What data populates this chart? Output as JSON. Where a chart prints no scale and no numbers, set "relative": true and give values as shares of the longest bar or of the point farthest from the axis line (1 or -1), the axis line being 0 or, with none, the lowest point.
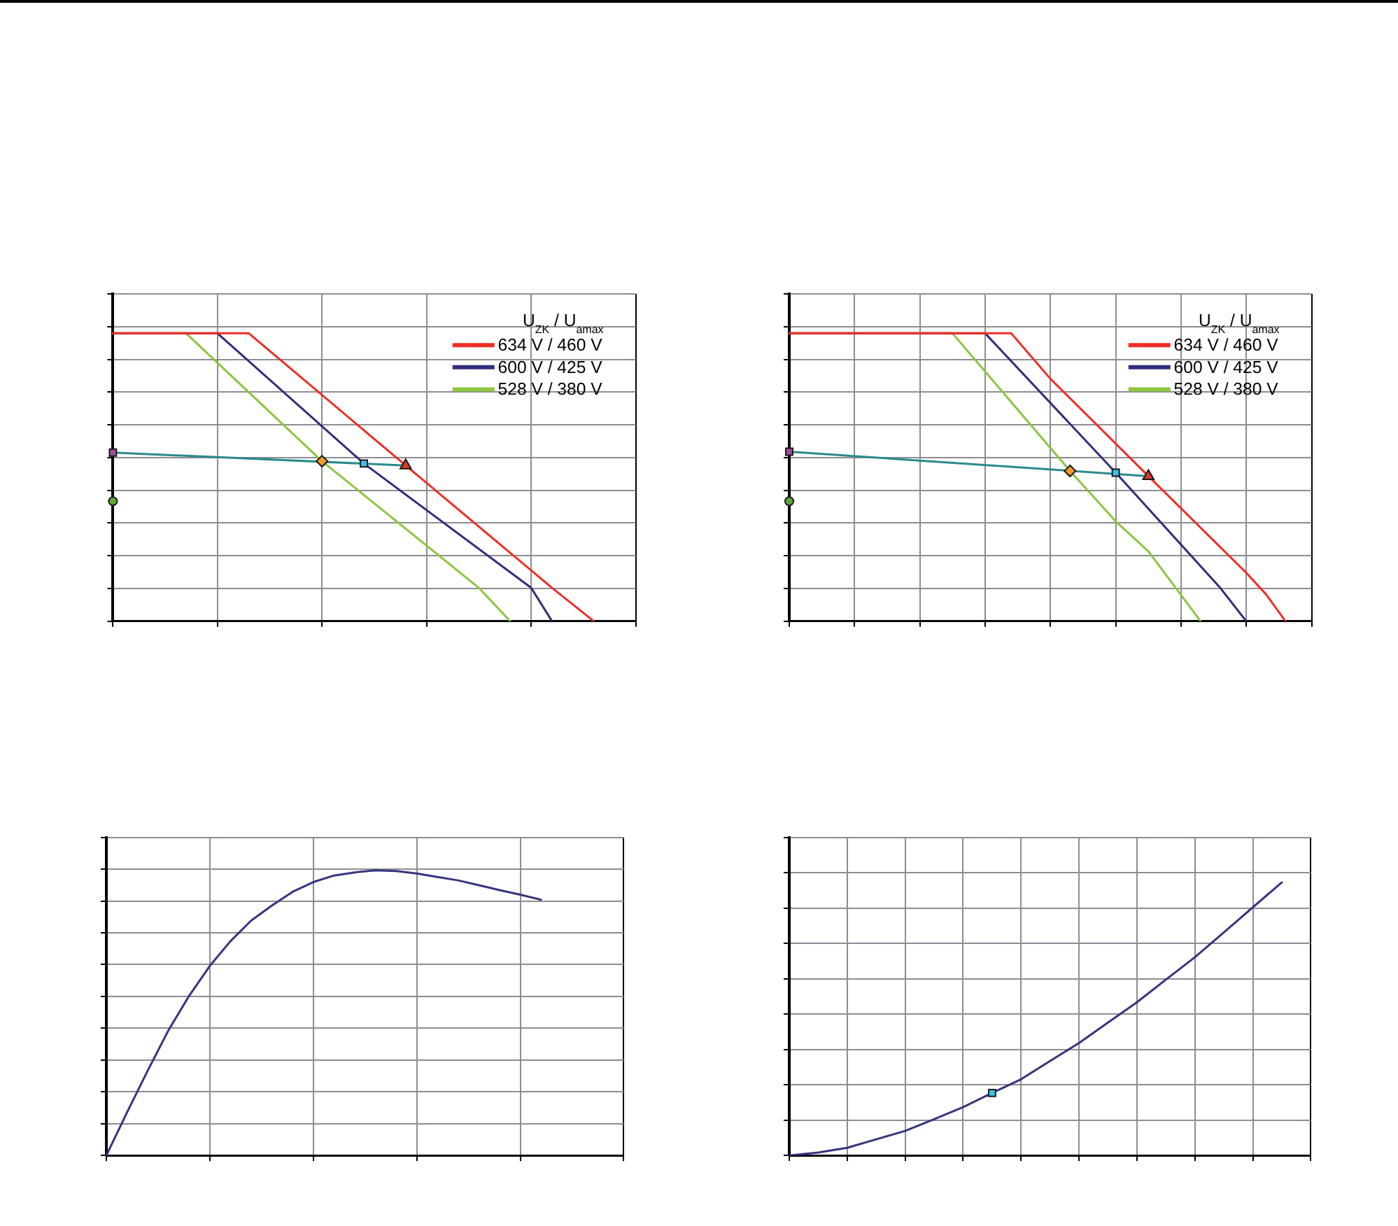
{
  "chart_data": [
    {
      "type": "line",
      "relative": true,
      "grid": true,
      "legend": "top right",
      "legend_title": "U$_{ZK}$ / U$_{amax}$",
      "categories": [
        null,
        null,
        null,
        null,
        null,
        null,
        null,
        null,
        null,
        null,
        null,
        null,
        null,
        null,
        null,
        null,
        null,
        null,
        null,
        null,
        null,
        null,
        null,
        null,
        null,
        null,
        null,
        null,
        null,
        null,
        null,
        null,
        null,
        null,
        null,
        null,
        null,
        null,
        null,
        null,
        null,
        null,
        null,
        null,
        null,
        null,
        null,
        null,
        null,
        null,
        null
      ],
      "series": [
        {
          "name": "634 V / 460 V",
          "color": "#ee2e24",
          "values": [
            1,
            null,
            null,
            null,
            null,
            null,
            null,
            null,
            null,
            null,
            null,
            null,
            null,
            1,
            null,
            null,
            null,
            null,
            null,
            null,
            null,
            null,
            null,
            null,
            null,
            null,
            null,
            null,
            0.541,
            null,
            null,
            null,
            null,
            null,
            null,
            null,
            null,
            null,
            null,
            null,
            null,
            null,
            0.116,
            null,
            null,
            null,
            0,
            null,
            null,
            null,
            null
          ]
        },
        {
          "name": "600 V / 425 V",
          "color": "#302e7c",
          "values": [
            1,
            null,
            null,
            null,
            null,
            null,
            null,
            null,
            null,
            null,
            1,
            null,
            null,
            null,
            null,
            null,
            null,
            null,
            null,
            null,
            null,
            null,
            null,
            null,
            0.548,
            null,
            null,
            null,
            null,
            null,
            null,
            null,
            null,
            null,
            null,
            null,
            null,
            null,
            null,
            null,
            0.116,
            null,
            0,
            null,
            null,
            null,
            null,
            null,
            null,
            null,
            null
          ]
        },
        {
          "name": "528 V / 380 V",
          "color": "#8dc63f",
          "values": [
            1,
            null,
            null,
            null,
            null,
            null,
            null,
            1,
            null,
            null,
            null,
            null,
            null,
            null,
            null,
            null,
            null,
            null,
            null,
            null,
            0.556,
            null,
            null,
            null,
            null,
            null,
            null,
            null,
            null,
            null,
            null,
            null,
            null,
            null,
            null,
            0.116,
            null,
            null,
            0,
            null,
            null,
            null,
            null,
            null,
            null,
            null,
            null,
            null,
            null,
            null,
            null
          ]
        },
        {
          "color": "#2b8a8c",
          "values": [
            0.586,
            null,
            null,
            null,
            null,
            null,
            null,
            null,
            null,
            null,
            null,
            null,
            null,
            null,
            null,
            null,
            null,
            null,
            null,
            null,
            null,
            null,
            null,
            null,
            null,
            null,
            null,
            null,
            0.541,
            null,
            null,
            null,
            null,
            null,
            null,
            null,
            null,
            null,
            null,
            null,
            null,
            null,
            null,
            null,
            null,
            null,
            null,
            null,
            null,
            null,
            null
          ]
        },
        {
          "type": "line",
          "marker": "square",
          "color": "#9e4f9a",
          "values": [
            0.586,
            null,
            null,
            null,
            null,
            null,
            null,
            null,
            null,
            null,
            null,
            null,
            null,
            null,
            null,
            null,
            null,
            null,
            null,
            null,
            null,
            null,
            null,
            null,
            null,
            null,
            null,
            null,
            null,
            null,
            null,
            null,
            null,
            null,
            null,
            null,
            null,
            null,
            null,
            null,
            null,
            null,
            null,
            null,
            null,
            null,
            null,
            null,
            null,
            null,
            null
          ]
        },
        {
          "type": "line",
          "marker": "circle",
          "color": "#5aa83a",
          "values": [
            0.417,
            null,
            null,
            null,
            null,
            null,
            null,
            null,
            null,
            null,
            null,
            null,
            null,
            null,
            null,
            null,
            null,
            null,
            null,
            null,
            null,
            null,
            null,
            null,
            null,
            null,
            null,
            null,
            null,
            null,
            null,
            null,
            null,
            null,
            null,
            null,
            null,
            null,
            null,
            null,
            null,
            null,
            null,
            null,
            null,
            null,
            null,
            null,
            null,
            null,
            null
          ]
        },
        {
          "type": "line",
          "marker": "diamond",
          "color": "#f29a2e",
          "values": [
            null,
            null,
            null,
            null,
            null,
            null,
            null,
            null,
            null,
            null,
            null,
            null,
            null,
            null,
            null,
            null,
            null,
            null,
            null,
            null,
            0.556,
            null,
            null,
            null,
            null,
            null,
            null,
            null,
            null,
            null,
            null,
            null,
            null,
            null,
            null,
            null,
            null,
            null,
            null,
            null,
            null,
            null,
            null,
            null,
            null,
            null,
            null,
            null,
            null,
            null,
            null
          ]
        },
        {
          "type": "line",
          "marker": "square",
          "color": "#36c3ea",
          "values": [
            null,
            null,
            null,
            null,
            null,
            null,
            null,
            null,
            null,
            null,
            null,
            null,
            null,
            null,
            null,
            null,
            null,
            null,
            null,
            null,
            null,
            null,
            null,
            null,
            0.548,
            null,
            null,
            null,
            null,
            null,
            null,
            null,
            null,
            null,
            null,
            null,
            null,
            null,
            null,
            null,
            null,
            null,
            null,
            null,
            null,
            null,
            null,
            null,
            null,
            null,
            null
          ]
        },
        {
          "type": "line",
          "marker": "triangle",
          "color": "#d9382c",
          "values": [
            null,
            null,
            null,
            null,
            null,
            null,
            null,
            null,
            null,
            null,
            null,
            null,
            null,
            null,
            null,
            null,
            null,
            null,
            null,
            null,
            null,
            null,
            null,
            null,
            null,
            null,
            null,
            null,
            0.541,
            null,
            null,
            null,
            null,
            null,
            null,
            null,
            null,
            null,
            null,
            null,
            null,
            null,
            null,
            null,
            null,
            null,
            null,
            null,
            null,
            null,
            null
          ]
        }
      ]
    },
    {
      "type": "line",
      "relative": true,
      "grid": true,
      "legend": "top right",
      "legend_title": "U$_{ZK}$ / U$_{amax}$",
      "categories": [
        null,
        null,
        null,
        null,
        null,
        null,
        null,
        null,
        null,
        null,
        null,
        null,
        null,
        null,
        null,
        null,
        null,
        null,
        null,
        null,
        null,
        null,
        null,
        null,
        null,
        null,
        null,
        null,
        null,
        null,
        null,
        null,
        null,
        null,
        null,
        null,
        null,
        null,
        null,
        null,
        null,
        null,
        null,
        null,
        null,
        null,
        null,
        null,
        null,
        null,
        null,
        null,
        null,
        null,
        null,
        null,
        null,
        null,
        null,
        null,
        null,
        null,
        null,
        null,
        null,
        null,
        null,
        null,
        null,
        null,
        null,
        null,
        null,
        null,
        null,
        null,
        null,
        null,
        null,
        null,
        null
      ],
      "series": [
        {
          "name": "634 V / 460 V",
          "color": "#ee2e24",
          "values": [
            1,
            null,
            null,
            null,
            null,
            null,
            null,
            null,
            null,
            null,
            null,
            null,
            null,
            null,
            null,
            null,
            null,
            null,
            null,
            null,
            null,
            null,
            null,
            null,
            null,
            null,
            null,
            null,
            null,
            null,
            null,
            null,
            null,
            null,
            1,
            null,
            null,
            null,
            null,
            null,
            0.842,
            null,
            null,
            null,
            null,
            null,
            null,
            null,
            null,
            null,
            null,
            null,
            null,
            null,
            null,
            0.504,
            null,
            null,
            null,
            null,
            null,
            null,
            null,
            null,
            null,
            null,
            null,
            null,
            null,
            null,
            0.168,
            null,
            null,
            0.094,
            null,
            null,
            0,
            null,
            null,
            null,
            null
          ]
        },
        {
          "name": "600 V / 425 V",
          "color": "#302e7c",
          "values": [
            1,
            null,
            null,
            null,
            null,
            null,
            null,
            null,
            null,
            null,
            null,
            null,
            null,
            null,
            null,
            null,
            null,
            null,
            null,
            null,
            null,
            null,
            null,
            null,
            null,
            null,
            null,
            null,
            null,
            null,
            1,
            null,
            null,
            null,
            null,
            null,
            null,
            null,
            null,
            null,
            null,
            null,
            null,
            null,
            null,
            null,
            null,
            null,
            null,
            null,
            0.516,
            null,
            null,
            null,
            null,
            null,
            null,
            null,
            null,
            null,
            null,
            null,
            null,
            null,
            null,
            null,
            0.116,
            null,
            null,
            null,
            0,
            null,
            null,
            null,
            null,
            null,
            null,
            null,
            null,
            null,
            null
          ]
        },
        {
          "name": "528 V / 380 V",
          "color": "#8dc63f",
          "values": [
            1,
            null,
            null,
            null,
            null,
            null,
            null,
            null,
            null,
            null,
            null,
            null,
            null,
            null,
            null,
            null,
            null,
            null,
            null,
            null,
            null,
            null,
            null,
            null,
            null,
            1,
            null,
            null,
            null,
            null,
            null,
            null,
            null,
            null,
            null,
            null,
            null,
            null,
            null,
            null,
            null,
            null,
            null,
            0.522,
            null,
            null,
            null,
            null,
            null,
            null,
            0.347,
            null,
            null,
            null,
            null,
            0.243,
            null,
            null,
            null,
            null,
            null,
            null,
            null,
            0,
            null,
            null,
            null,
            null,
            null,
            null,
            null,
            null,
            null,
            null,
            null,
            null,
            null,
            null,
            null,
            null,
            null
          ]
        },
        {
          "color": "#2b8a8c",
          "values": [
            0.589,
            null,
            null,
            null,
            null,
            null,
            null,
            null,
            null,
            null,
            null,
            null,
            null,
            null,
            null,
            null,
            null,
            null,
            null,
            null,
            null,
            null,
            null,
            null,
            null,
            null,
            null,
            null,
            null,
            null,
            null,
            null,
            null,
            null,
            null,
            null,
            null,
            null,
            null,
            null,
            null,
            null,
            null,
            null,
            null,
            null,
            null,
            null,
            null,
            null,
            null,
            null,
            null,
            null,
            null,
            0.504,
            null,
            null,
            null,
            null,
            null,
            null,
            null,
            null,
            null,
            null,
            null,
            null,
            null,
            null,
            null,
            null,
            null,
            null,
            null,
            null,
            null,
            null,
            null,
            null,
            null
          ]
        },
        {
          "type": "line",
          "marker": "square",
          "color": "#9e4f9a",
          "values": [
            0.589,
            null,
            null,
            null,
            null,
            null,
            null,
            null,
            null,
            null,
            null,
            null,
            null,
            null,
            null,
            null,
            null,
            null,
            null,
            null,
            null,
            null,
            null,
            null,
            null,
            null,
            null,
            null,
            null,
            null,
            null,
            null,
            null,
            null,
            null,
            null,
            null,
            null,
            null,
            null,
            null,
            null,
            null,
            null,
            null,
            null,
            null,
            null,
            null,
            null,
            null,
            null,
            null,
            null,
            null,
            null,
            null,
            null,
            null,
            null,
            null,
            null,
            null,
            null,
            null,
            null,
            null,
            null,
            null,
            null,
            null,
            null,
            null,
            null,
            null,
            null,
            null,
            null,
            null,
            null,
            null
          ]
        },
        {
          "type": "line",
          "marker": "circle",
          "color": "#5aa83a",
          "values": [
            0.417,
            null,
            null,
            null,
            null,
            null,
            null,
            null,
            null,
            null,
            null,
            null,
            null,
            null,
            null,
            null,
            null,
            null,
            null,
            null,
            null,
            null,
            null,
            null,
            null,
            null,
            null,
            null,
            null,
            null,
            null,
            null,
            null,
            null,
            null,
            null,
            null,
            null,
            null,
            null,
            null,
            null,
            null,
            null,
            null,
            null,
            null,
            null,
            null,
            null,
            null,
            null,
            null,
            null,
            null,
            null,
            null,
            null,
            null,
            null,
            null,
            null,
            null,
            null,
            null,
            null,
            null,
            null,
            null,
            null,
            null,
            null,
            null,
            null,
            null,
            null,
            null,
            null,
            null,
            null,
            null
          ]
        },
        {
          "type": "line",
          "marker": "diamond",
          "color": "#f29a2e",
          "values": [
            null,
            null,
            null,
            null,
            null,
            null,
            null,
            null,
            null,
            null,
            null,
            null,
            null,
            null,
            null,
            null,
            null,
            null,
            null,
            null,
            null,
            null,
            null,
            null,
            null,
            null,
            null,
            null,
            null,
            null,
            null,
            null,
            null,
            null,
            null,
            null,
            null,
            null,
            null,
            null,
            null,
            null,
            null,
            0.522,
            null,
            null,
            null,
            null,
            null,
            null,
            null,
            null,
            null,
            null,
            null,
            null,
            null,
            null,
            null,
            null,
            null,
            null,
            null,
            null,
            null,
            null,
            null,
            null,
            null,
            null,
            null,
            null,
            null,
            null,
            null,
            null,
            null,
            null,
            null,
            null,
            null
          ]
        },
        {
          "type": "line",
          "marker": "square",
          "color": "#36c3ea",
          "values": [
            null,
            null,
            null,
            null,
            null,
            null,
            null,
            null,
            null,
            null,
            null,
            null,
            null,
            null,
            null,
            null,
            null,
            null,
            null,
            null,
            null,
            null,
            null,
            null,
            null,
            null,
            null,
            null,
            null,
            null,
            null,
            null,
            null,
            null,
            null,
            null,
            null,
            null,
            null,
            null,
            null,
            null,
            null,
            null,
            null,
            null,
            null,
            null,
            null,
            null,
            0.516,
            null,
            null,
            null,
            null,
            null,
            null,
            null,
            null,
            null,
            null,
            null,
            null,
            null,
            null,
            null,
            null,
            null,
            null,
            null,
            null,
            null,
            null,
            null,
            null,
            null,
            null,
            null,
            null,
            null,
            null
          ]
        },
        {
          "type": "line",
          "marker": "triangle",
          "color": "#d9382c",
          "values": [
            null,
            null,
            null,
            null,
            null,
            null,
            null,
            null,
            null,
            null,
            null,
            null,
            null,
            null,
            null,
            null,
            null,
            null,
            null,
            null,
            null,
            null,
            null,
            null,
            null,
            null,
            null,
            null,
            null,
            null,
            null,
            null,
            null,
            null,
            null,
            null,
            null,
            null,
            null,
            null,
            null,
            null,
            null,
            null,
            null,
            null,
            null,
            null,
            null,
            null,
            null,
            null,
            null,
            null,
            null,
            0.504,
            null,
            null,
            null,
            null,
            null,
            null,
            null,
            null,
            null,
            null,
            null,
            null,
            null,
            null,
            null,
            null,
            null,
            null,
            null,
            null,
            null,
            null,
            null,
            null,
            null
          ]
        }
      ]
    },
    {
      "type": "line",
      "relative": true,
      "grid": true,
      "categories": [
        null,
        null,
        null,
        null,
        null,
        null,
        null,
        null,
        null,
        null,
        null,
        null,
        null,
        null,
        null,
        null,
        null,
        null,
        null,
        null,
        null,
        null,
        null,
        null,
        null,
        null,
        null,
        null,
        null,
        null,
        null,
        null,
        null,
        null,
        null,
        null,
        null,
        null,
        null,
        null,
        null,
        null,
        null,
        null,
        null,
        null,
        null,
        null,
        null,
        null,
        null
      ],
      "series": [
        {
          "color": "#36357f",
          "values": [
            0,
            null,
            0.151,
            null,
            0.298,
            null,
            0.439,
            null,
            0.56,
            null,
            0.665,
            null,
            0.752,
            null,
            0.824,
            null,
            0.877,
            null,
            0.925,
            null,
            0.959,
            null,
            0.982,
            null,
            0.993,
            null,
            1,
            null,
            0.998,
            null,
            0.989,
            null,
            0.977,
            null,
            0.965,
            null,
            0.948,
            null,
            0.931,
            null,
            0.915,
            null,
            0.897,
            null,
            null,
            null,
            null,
            null,
            null,
            null,
            null
          ]
        }
      ]
    },
    {
      "type": "line",
      "relative": true,
      "grid": true,
      "categories": [
        null,
        null,
        null,
        null,
        null,
        null,
        null,
        null,
        null,
        null,
        null,
        null,
        null,
        null,
        null,
        null,
        null,
        null,
        null,
        null,
        null,
        null,
        null,
        null,
        null,
        null,
        null,
        null,
        null,
        null,
        null,
        null,
        null,
        null,
        null,
        null,
        null,
        null,
        null,
        null,
        null,
        null,
        null,
        null,
        null,
        null,
        null,
        null,
        null,
        null,
        null,
        null,
        null,
        null,
        null,
        null,
        null,
        null,
        null,
        null,
        null,
        null,
        null,
        null,
        null,
        null,
        null,
        null,
        null,
        null,
        null,
        null,
        null,
        null,
        null,
        null,
        null,
        null,
        null,
        null,
        null,
        null,
        null,
        null,
        null,
        null,
        null,
        null,
        null,
        null,
        null
      ],
      "series": [
        {
          "color": "#36357f",
          "values": [
            0,
            null,
            null,
            null,
            null,
            0.011,
            null,
            null,
            null,
            null,
            0.028,
            null,
            null,
            null,
            null,
            0.059,
            null,
            null,
            null,
            null,
            0.09,
            null,
            null,
            null,
            null,
            0.133,
            null,
            null,
            null,
            null,
            0.177,
            null,
            null,
            null,
            null,
            0.229,
            null,
            null,
            null,
            null,
            0.279,
            null,
            null,
            null,
            null,
            0.346,
            null,
            null,
            null,
            null,
            0.412,
            null,
            null,
            null,
            null,
            0.487,
            null,
            null,
            null,
            null,
            0.561,
            null,
            null,
            null,
            null,
            0.644,
            null,
            null,
            null,
            null,
            0.726,
            null,
            null,
            null,
            null,
            0.817,
            null,
            null,
            null,
            null,
            0.909,
            null,
            null,
            null,
            null,
            1,
            null,
            null,
            null,
            null,
            null
          ]
        },
        {
          "type": "line",
          "marker": "square",
          "color": "#36c3ea",
          "values": [
            null,
            null,
            null,
            null,
            null,
            null,
            null,
            null,
            null,
            null,
            null,
            null,
            null,
            null,
            null,
            null,
            null,
            null,
            null,
            null,
            null,
            null,
            null,
            null,
            null,
            null,
            null,
            null,
            null,
            null,
            null,
            null,
            null,
            null,
            null,
            0.229,
            null,
            null,
            null,
            null,
            null,
            null,
            null,
            null,
            null,
            null,
            null,
            null,
            null,
            null,
            null,
            null,
            null,
            null,
            null,
            null,
            null,
            null,
            null,
            null,
            null,
            null,
            null,
            null,
            null,
            null,
            null,
            null,
            null,
            null,
            null,
            null,
            null,
            null,
            null,
            null,
            null,
            null,
            null,
            null,
            null,
            null,
            null,
            null,
            null,
            null,
            null,
            null,
            null,
            null,
            null
          ]
        }
      ]
    }
  ]
}
